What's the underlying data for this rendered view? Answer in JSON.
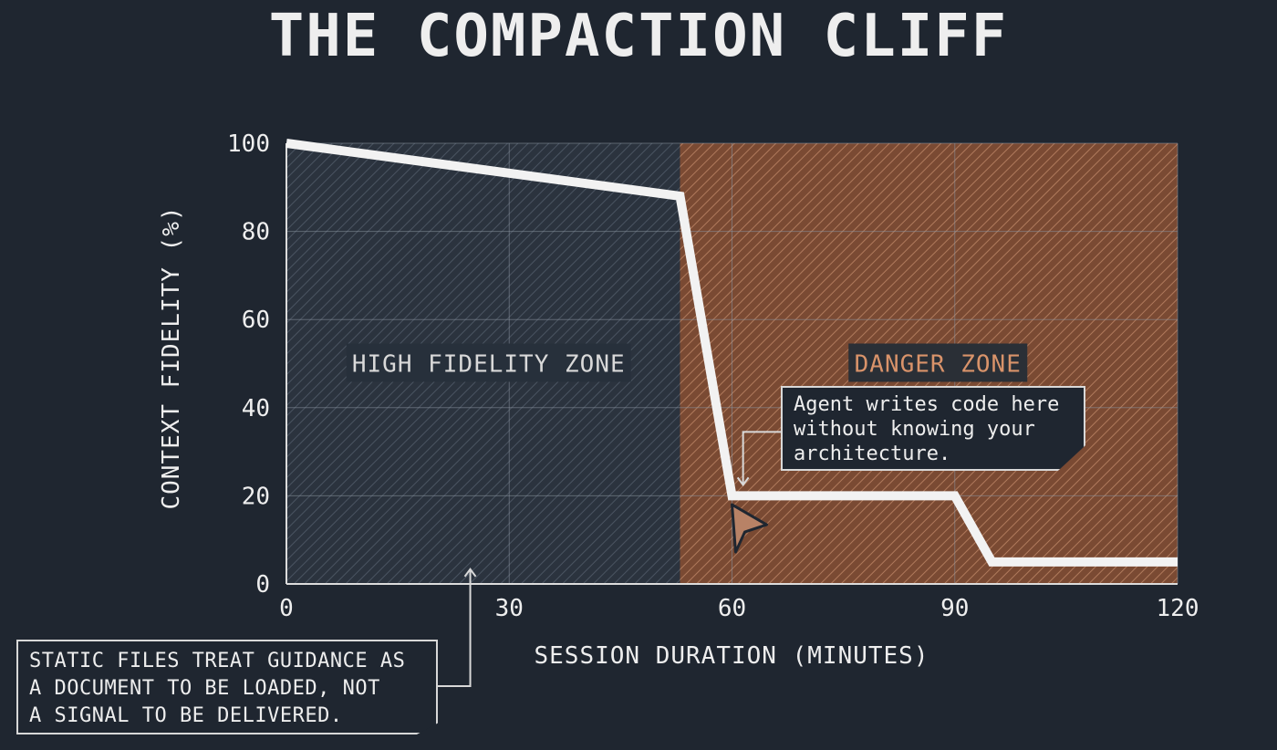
{
  "title": "THE COMPACTION CLIFF",
  "colors": {
    "background": "#1f2630",
    "line": "#f2f2f2",
    "danger_fill": "#7a4a33",
    "danger_text": "#d9936a",
    "grid": "#8a94a0"
  },
  "chart_data": {
    "type": "line",
    "title": "THE COMPACTION CLIFF",
    "xlabel": "SESSION DURATION (MINUTES)",
    "ylabel": "CONTEXT FIDELITY (%)",
    "xlim": [
      0,
      120
    ],
    "ylim": [
      0,
      100
    ],
    "xticks": [
      0,
      30,
      60,
      90,
      120
    ],
    "yticks": [
      0,
      20,
      40,
      60,
      80,
      100
    ],
    "grid": true,
    "series": [
      {
        "x": [
          0,
          53,
          60,
          90,
          95,
          120
        ],
        "y": [
          100,
          88,
          20,
          20,
          5,
          5
        ]
      }
    ],
    "zones": [
      {
        "label": "HIGH FIDELITY ZONE",
        "x_range": [
          0,
          53
        ],
        "style": "hatched-dark"
      },
      {
        "label": "DANGER ZONE",
        "x_range": [
          53,
          120
        ],
        "style": "hatched-orange"
      }
    ],
    "annotations": [
      {
        "text": "Agent writes code here\nwithout knowing your\narchitecture.",
        "target": {
          "x": 61,
          "y": 20
        }
      },
      {
        "text": "STATIC FILES TREAT GUIDANCE AS\nA DOCUMENT TO BE LOADED, NOT\nA SIGNAL TO BE DELIVERED.",
        "target": {
          "x": 25,
          "y": 5
        }
      }
    ]
  },
  "zone_labels": {
    "high": "HIGH FIDELITY ZONE",
    "danger": "DANGER ZONE"
  },
  "callouts": {
    "agent": "Agent writes code here\nwithout knowing your\narchitecture.",
    "static": "STATIC FILES TREAT GUIDANCE AS\nA DOCUMENT TO BE LOADED, NOT\nA SIGNAL TO BE DELIVERED."
  },
  "cursor_icon": "mouse-cursor-icon"
}
